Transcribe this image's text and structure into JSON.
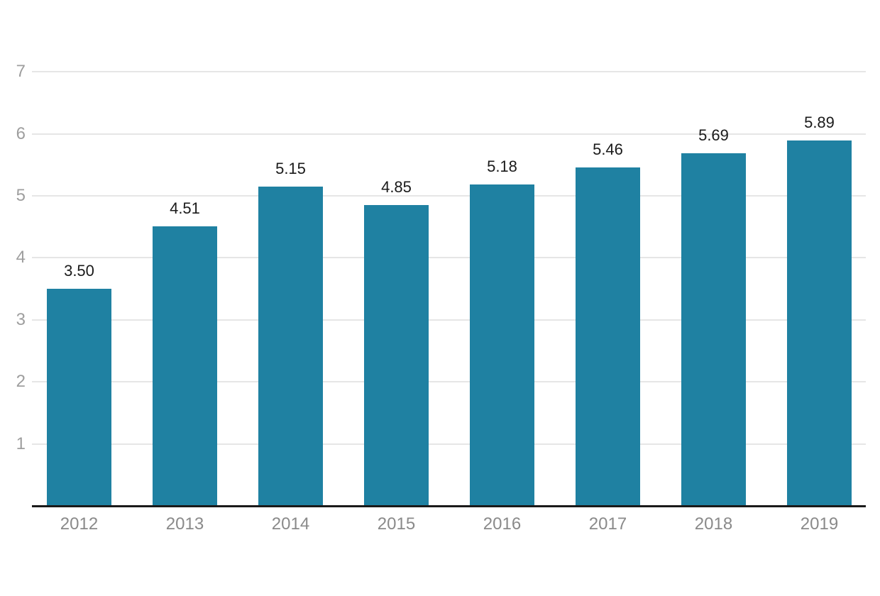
{
  "chart_data": {
    "type": "bar",
    "categories": [
      "2012",
      "2013",
      "2014",
      "2015",
      "2016",
      "2017",
      "2018",
      "2019"
    ],
    "values": [
      3.5,
      4.51,
      5.15,
      4.85,
      5.18,
      5.46,
      5.69,
      5.89
    ],
    "value_labels": [
      "3.50",
      "4.51",
      "5.15",
      "4.85",
      "5.18",
      "5.46",
      "5.69",
      "5.89"
    ],
    "title": "",
    "xlabel": "",
    "ylabel": "",
    "ylim": [
      0,
      7
    ],
    "yticks": [
      1,
      2,
      3,
      4,
      5,
      6,
      7
    ],
    "grid": true,
    "legend": "none",
    "bar_color": "#1f81a2",
    "grid_color": "#e6e6e6",
    "axis_line_color": "#1a1a1a",
    "ytick_color": "#9e9e9e",
    "xtick_color": "#8a8a8a",
    "value_label_color": "#1a1a1a",
    "background_color": "#ffffff"
  }
}
